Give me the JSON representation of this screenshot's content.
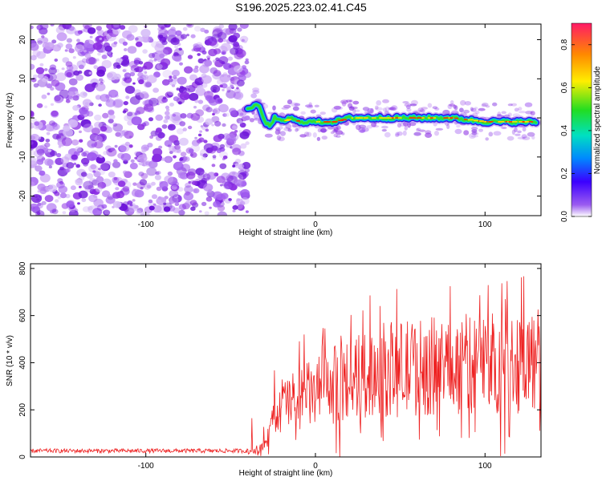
{
  "title": "S196.2025.223.02.41.C45",
  "colors": {
    "line": "#ee2020",
    "scatter": "#8a2be2",
    "axis": "#000000"
  },
  "chart_data": [
    {
      "type": "heatmap",
      "xlabel": "Height of straight line (km)",
      "ylabel": "Frequency (Hz)",
      "xlim": [
        -168,
        133
      ],
      "ylim": [
        -25,
        24
      ],
      "xticks": [
        -100,
        0,
        100
      ],
      "yticks": [
        -20,
        -10,
        0,
        10,
        20
      ],
      "noise_region_x": [
        -168,
        -40
      ],
      "ridge": {
        "x": [
          -40,
          -37,
          -33,
          -30,
          -27,
          -24,
          -20,
          -15,
          -10,
          -5,
          0,
          10,
          20,
          40,
          60,
          80,
          100,
          110,
          120,
          130
        ],
        "freq": [
          2,
          3,
          3,
          -1,
          -2,
          0,
          -1,
          0,
          -1,
          -1,
          -1,
          -1,
          0,
          0,
          0,
          0,
          -1,
          -1,
          -1,
          -1
        ]
      },
      "colorbar": {
        "label": "Normalized spectral amplitude",
        "range": [
          0.0,
          0.9
        ],
        "ticks": [
          "0.0",
          "0.2",
          "0.4",
          "0.6",
          "0.8"
        ]
      }
    },
    {
      "type": "line",
      "xlabel": "Height of straight line (km)",
      "ylabel": "SNR (10 * v/v)",
      "xlim": [
        -168,
        133
      ],
      "ylim": [
        0,
        820
      ],
      "xticks": [
        -100,
        0,
        100
      ],
      "yticks": [
        0,
        200,
        400,
        600,
        800
      ],
      "series": [
        {
          "name": "SNR",
          "envelope_x": [
            -168,
            -40,
            -30,
            -25,
            -20,
            -10,
            0,
            20,
            40,
            60,
            80,
            100,
            120,
            133
          ],
          "envelope_y": [
            25,
            25,
            40,
            150,
            220,
            250,
            270,
            330,
            370,
            380,
            390,
            400,
            410,
            410
          ]
        }
      ]
    }
  ]
}
